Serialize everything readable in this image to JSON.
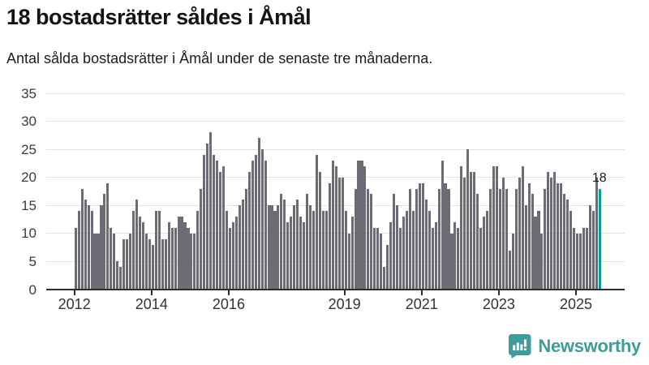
{
  "header": {
    "title": "18 bostadsrätter såldes i Åmål",
    "subtitle": "Antal sålda bostadsrätter i Åmål under de senaste tre månaderna."
  },
  "chart_data": {
    "type": "bar",
    "title": "18 bostadsrätter såldes i Åmål",
    "subtitle": "Antal sålda bostadsrätter i Åmål under de senaste tre månaderna.",
    "frequency": "monthly",
    "x_start": "2012-01",
    "x_end": "2025-08",
    "values": [
      11,
      14,
      18,
      16,
      15,
      14,
      10,
      10,
      15,
      17,
      19,
      11,
      10,
      5,
      4,
      9,
      9,
      10,
      14,
      16,
      13,
      12,
      10,
      9,
      8,
      14,
      14,
      9,
      9,
      12,
      11,
      11,
      13,
      13,
      12,
      11,
      10,
      10,
      14,
      18,
      24,
      26,
      28,
      24,
      23,
      21,
      22,
      14,
      11,
      12,
      13,
      15,
      16,
      18,
      21,
      23,
      24,
      27,
      25,
      23,
      15,
      15,
      14,
      15,
      17,
      16,
      12,
      13,
      15,
      16,
      13,
      12,
      17,
      15,
      14,
      24,
      21,
      14,
      14,
      19,
      23,
      22,
      20,
      20,
      14,
      10,
      13,
      18,
      23,
      23,
      22,
      18,
      17,
      11,
      11,
      10,
      4,
      8,
      12,
      17,
      15,
      11,
      13,
      14,
      18,
      14,
      18,
      19,
      19,
      16,
      14,
      11,
      12,
      18,
      23,
      19,
      18,
      10,
      12,
      11,
      22,
      20,
      25,
      21,
      21,
      17,
      11,
      13,
      14,
      18,
      22,
      22,
      18,
      20,
      18,
      7,
      10,
      18,
      20,
      22,
      15,
      19,
      17,
      13,
      14,
      10,
      18,
      21,
      20,
      21,
      19,
      19,
      17,
      16,
      14,
      11,
      10,
      10,
      11,
      11,
      15,
      14,
      20,
      18
    ],
    "ylim": [
      0,
      35
    ],
    "yticks": [
      0,
      5,
      10,
      15,
      20,
      25,
      30,
      35
    ],
    "xtick_labels": [
      "2012",
      "2014",
      "2016",
      "2019",
      "2021",
      "2023",
      "2025"
    ],
    "xtick_year_offsets": [
      0,
      2,
      4,
      7,
      9,
      11,
      13
    ],
    "grid": "horizontal",
    "legend": "none",
    "bar_color": "#6C6C75",
    "highlight": {
      "index": 163,
      "value": 18,
      "label": "18",
      "color": "#009EA3"
    }
  },
  "branding": {
    "logo_text": "Newsworthy",
    "logo_color": "#3E9D9A",
    "icon": "bar-chart-speech-bubble-icon"
  }
}
